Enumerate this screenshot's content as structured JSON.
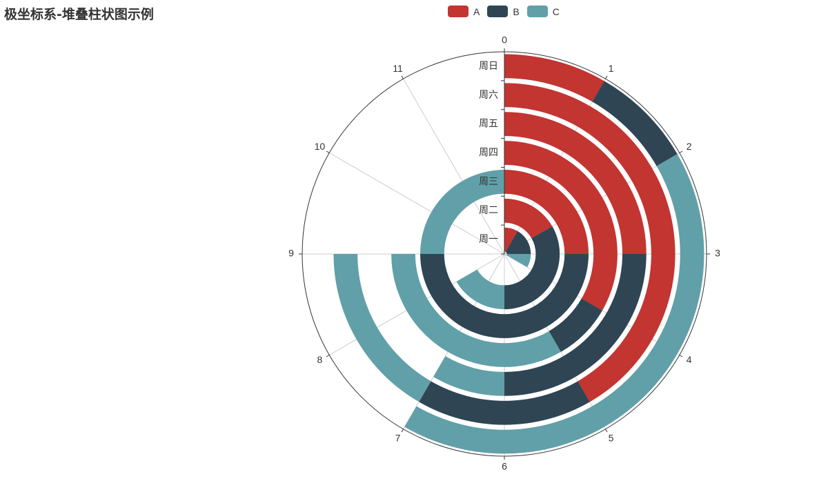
{
  "title": "极坐标系-堆叠柱状图示例",
  "legend": [
    {
      "name": "A",
      "color": "#c23531"
    },
    {
      "name": "B",
      "color": "#2f4554"
    },
    {
      "name": "C",
      "color": "#61a0a8"
    }
  ],
  "chart_data": {
    "type": "bar",
    "coordinate": "polar",
    "stacked": true,
    "categories": [
      "周一",
      "周二",
      "周三",
      "周四",
      "周五",
      "周六",
      "周日"
    ],
    "angle_axis": {
      "min": 0,
      "max": 12,
      "ticks": [
        "0",
        "1",
        "2",
        "3",
        "4",
        "5",
        "6",
        "7",
        "8",
        "9",
        "10",
        "11"
      ]
    },
    "series": [
      {
        "name": "A",
        "color": "#c23531",
        "values": [
          1,
          2,
          3,
          4,
          3,
          5,
          1
        ]
      },
      {
        "name": "B",
        "color": "#2f4554",
        "values": [
          2,
          4,
          6,
          1,
          3,
          2,
          1
        ]
      },
      {
        "name": "C",
        "color": "#61a0a8",
        "values": [
          1,
          2,
          3,
          4,
          1,
          2,
          5
        ]
      }
    ]
  }
}
